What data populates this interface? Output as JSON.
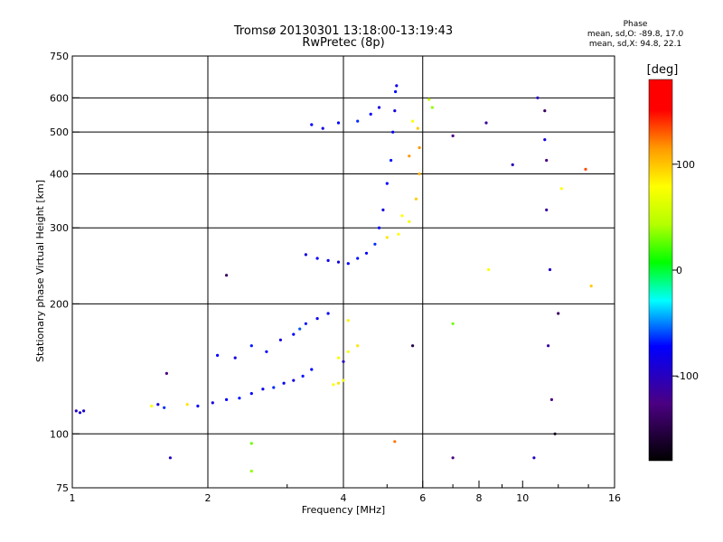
{
  "chart_data": {
    "type": "scatter",
    "title": "Tromsø 20130301 13:18:00-13:19:43",
    "subtitle": "RwPretec (8p)",
    "xlabel": "Frequency [MHz]",
    "ylabel": "Stationary phase Virtual Height [km]",
    "x_scale": "log",
    "y_scale": "log",
    "xlim": [
      1,
      16
    ],
    "ylim": [
      75,
      750
    ],
    "x_ticks": [
      1,
      2,
      4,
      6,
      8,
      10,
      16
    ],
    "y_ticks": [
      75,
      100,
      200,
      300,
      400,
      500,
      600,
      750
    ],
    "x_gridlines": [
      2,
      4,
      6
    ],
    "y_gridlines": [
      100,
      200,
      300,
      400,
      500,
      600
    ],
    "grid": true,
    "stats": {
      "heading": "Phase",
      "o_line": "mean, sd,O: -89.8, 17.0",
      "x_line": "mean, sd,X:  94.8, 22.1"
    },
    "colorbar": {
      "label": "[deg]",
      "range": [
        -180,
        180
      ],
      "tick_labels": [
        "100",
        "0",
        "-100"
      ],
      "tick_values": [
        100,
        0,
        -100
      ]
    },
    "points": [
      [
        1.02,
        113,
        -120
      ],
      [
        1.04,
        112,
        -110
      ],
      [
        1.06,
        113,
        -115
      ],
      [
        1.5,
        116,
        100
      ],
      [
        1.55,
        117,
        -110
      ],
      [
        1.6,
        115,
        -90
      ],
      [
        1.65,
        88,
        -120
      ],
      [
        1.62,
        138,
        -140
      ],
      [
        1.8,
        117,
        110
      ],
      [
        1.9,
        116,
        -100
      ],
      [
        2.05,
        118,
        -110
      ],
      [
        2.2,
        120,
        -100
      ],
      [
        2.35,
        121,
        -95
      ],
      [
        2.5,
        124,
        -100
      ],
      [
        2.65,
        127,
        -105
      ],
      [
        2.8,
        128,
        -90
      ],
      [
        2.95,
        131,
        -100
      ],
      [
        3.1,
        133,
        -110
      ],
      [
        3.25,
        136,
        -95
      ],
      [
        3.4,
        141,
        -100
      ],
      [
        2.1,
        152,
        -100
      ],
      [
        2.3,
        150,
        -110
      ],
      [
        2.5,
        160,
        -95
      ],
      [
        2.7,
        155,
        -100
      ],
      [
        2.9,
        165,
        -110
      ],
      [
        3.1,
        170,
        -100
      ],
      [
        3.3,
        180,
        -95
      ],
      [
        3.5,
        185,
        -105
      ],
      [
        3.7,
        190,
        -100
      ],
      [
        3.2,
        175,
        -80
      ],
      [
        3.8,
        130,
        100
      ],
      [
        3.9,
        131,
        110
      ],
      [
        4.0,
        133,
        90
      ],
      [
        3.9,
        150,
        95
      ],
      [
        4.1,
        155,
        100
      ],
      [
        4.3,
        160,
        110
      ],
      [
        4.0,
        147,
        -120
      ],
      [
        3.3,
        260,
        -110
      ],
      [
        3.5,
        255,
        -100
      ],
      [
        3.7,
        252,
        -105
      ],
      [
        3.9,
        250,
        -110
      ],
      [
        4.1,
        248,
        -100
      ],
      [
        4.3,
        255,
        -95
      ],
      [
        4.5,
        262,
        -100
      ],
      [
        4.7,
        275,
        -90
      ],
      [
        4.8,
        300,
        -100
      ],
      [
        4.9,
        330,
        -110
      ],
      [
        5.0,
        380,
        -100
      ],
      [
        5.1,
        430,
        -95
      ],
      [
        5.15,
        500,
        -100
      ],
      [
        5.2,
        560,
        -110
      ],
      [
        5.22,
        620,
        -100
      ],
      [
        5.25,
        640,
        -105
      ],
      [
        3.4,
        520,
        -100
      ],
      [
        3.6,
        510,
        -110
      ],
      [
        3.9,
        525,
        -100
      ],
      [
        4.3,
        530,
        -90
      ],
      [
        4.6,
        550,
        -100
      ],
      [
        4.8,
        570,
        -110
      ],
      [
        5.0,
        285,
        110
      ],
      [
        5.3,
        290,
        100
      ],
      [
        5.6,
        310,
        95
      ],
      [
        5.8,
        350,
        120
      ],
      [
        5.9,
        400,
        130
      ],
      [
        5.9,
        460,
        140
      ],
      [
        5.85,
        510,
        120
      ],
      [
        5.7,
        530,
        100
      ],
      [
        6.3,
        570,
        40
      ],
      [
        7.0,
        490,
        -140
      ],
      [
        8.3,
        525,
        -130
      ],
      [
        9.5,
        420,
        -120
      ],
      [
        10.8,
        600,
        -120
      ],
      [
        11.2,
        560,
        -150
      ],
      [
        11.2,
        480,
        -110
      ],
      [
        11.3,
        430,
        -140
      ],
      [
        11.3,
        330,
        -130
      ],
      [
        11.5,
        240,
        -120
      ],
      [
        11.4,
        160,
        -130
      ],
      [
        11.6,
        120,
        -140
      ],
      [
        11.8,
        100,
        -170
      ],
      [
        12.0,
        190,
        -150
      ],
      [
        12.2,
        370,
        100
      ],
      [
        13.8,
        410,
        160
      ],
      [
        14.2,
        220,
        120
      ],
      [
        8.4,
        240,
        100
      ],
      [
        7.0,
        180,
        30
      ],
      [
        5.7,
        160,
        -160
      ],
      [
        2.2,
        233,
        -150
      ],
      [
        2.5,
        95,
        30
      ],
      [
        2.5,
        82,
        40
      ],
      [
        7.0,
        88,
        -140
      ],
      [
        10.6,
        88,
        -120
      ],
      [
        5.2,
        96,
        150
      ],
      [
        4.1,
        183,
        105
      ],
      [
        5.6,
        440,
        140
      ],
      [
        5.4,
        320,
        100
      ],
      [
        6.2,
        595,
        60
      ]
    ]
  }
}
